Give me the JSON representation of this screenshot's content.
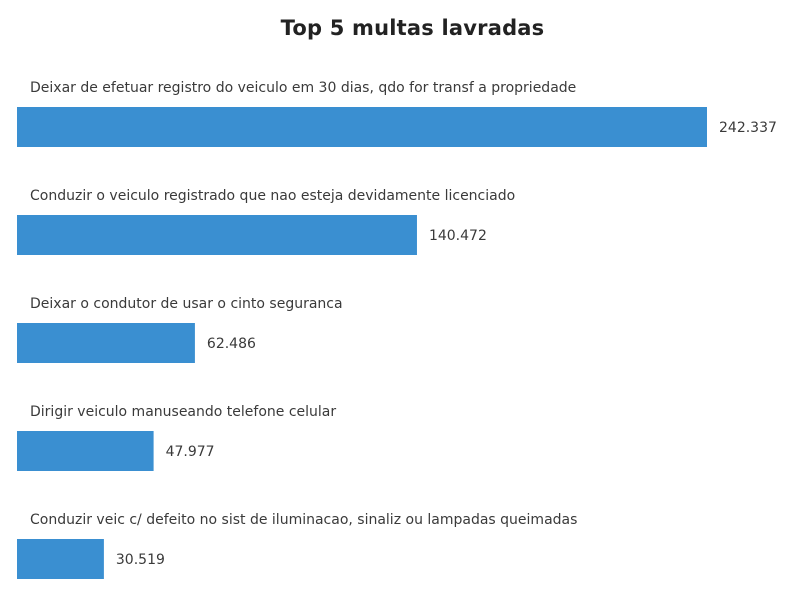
{
  "chart_data": {
    "type": "bar",
    "orientation": "horizontal",
    "title": "Top 5 multas lavradas",
    "categories": [
      "Deixar de efetuar registro do veiculo em 30 dias, qdo for transf a propriedade",
      "Conduzir o veiculo registrado que nao esteja devidamente licenciado",
      "Deixar o condutor de usar o cinto seguranca",
      "Dirigir veiculo manuseando telefone celular",
      "Conduzir veic c/ defeito no sist de iluminacao, sinaliz ou lampadas queimadas"
    ],
    "values": [
      242337,
      140472,
      62486,
      47977,
      30519
    ],
    "value_labels": [
      "242.337",
      "140.472",
      "62.486",
      "47.977",
      "30.519"
    ],
    "bar_color": "#3a8fd1",
    "xlim": [
      0,
      242337
    ],
    "grid": false,
    "legend": false
  }
}
